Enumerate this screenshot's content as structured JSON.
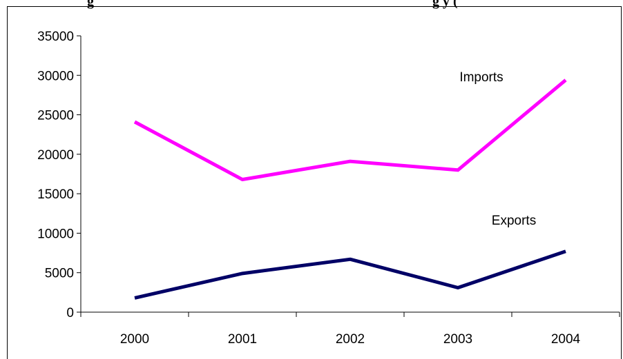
{
  "chart_data": {
    "type": "line",
    "title": "g",
    "title_suffix": "g y  (",
    "categories": [
      "2000",
      "2001",
      "2002",
      "2003",
      "2004"
    ],
    "ylim": [
      0,
      35000
    ],
    "yticks": [
      "0",
      "5000",
      "10000",
      "15000",
      "20000",
      "25000",
      "30000",
      "35000"
    ],
    "grid": false,
    "series": [
      {
        "name": "Imports",
        "color": "#ff00ff",
        "values": [
          24100,
          16800,
          19100,
          18000,
          29400
        ]
      },
      {
        "name": "Exports",
        "color": "#000066",
        "values": [
          1800,
          4900,
          6700,
          3100,
          7700
        ]
      }
    ]
  }
}
